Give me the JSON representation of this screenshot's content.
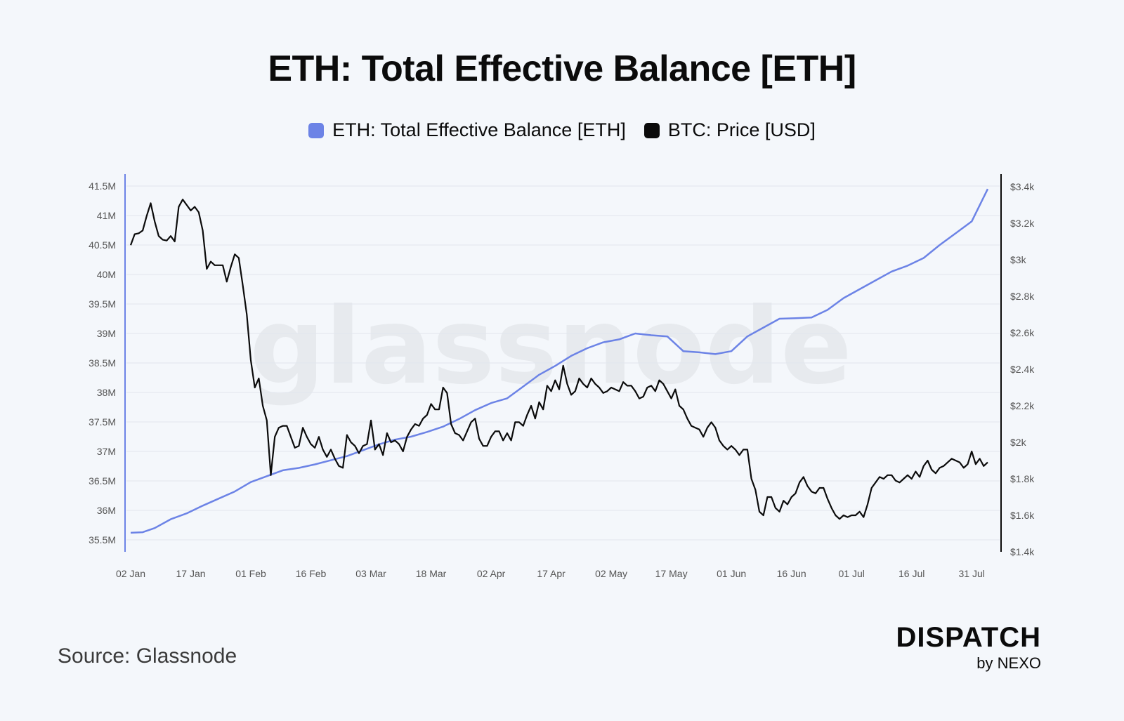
{
  "title": "ETH: Total Effective Balance [ETH]",
  "legend": [
    {
      "label": "ETH: Total Effective Balance [ETH]",
      "color": "#6c83e6"
    },
    {
      "label": "BTC: Price [USD]",
      "color": "#0b0b0b"
    }
  ],
  "watermark": "glassnode",
  "source": "Source: Glassnode",
  "brand": {
    "name": "DISPATCH",
    "sub": "by NEXO"
  },
  "chart_data": {
    "type": "line",
    "x_ticks": [
      "02 Jan",
      "17 Jan",
      "01 Feb",
      "16 Feb",
      "03 Mar",
      "18 Mar",
      "02 Apr",
      "17 Apr",
      "02 May",
      "17 May",
      "01 Jun",
      "16 Jun",
      "01 Jul",
      "16 Jul",
      "31 Jul"
    ],
    "x_range_days": [
      0,
      214
    ],
    "y_left": {
      "ticks": [
        "41.5M",
        "41M",
        "40.5M",
        "40M",
        "39.5M",
        "39M",
        "38.5M",
        "38M",
        "37.5M",
        "37M",
        "36.5M",
        "36M",
        "35.5M"
      ],
      "range": [
        35.3,
        41.7
      ]
    },
    "y_right": {
      "ticks": [
        "$3.4k",
        "$3.2k",
        "$3k",
        "$2.8k",
        "$2.6k",
        "$2.4k",
        "$2.2k",
        "$2k",
        "$1.8k",
        "$1.6k",
        "$1.4k"
      ],
      "range": [
        1400,
        3400
      ]
    },
    "grid": true,
    "series": [
      {
        "name": "ETH: Total Effective Balance [ETH]",
        "axis": "left",
        "color": "#6c83e6",
        "points": [
          [
            0,
            35.62
          ],
          [
            3,
            35.63
          ],
          [
            6,
            35.7
          ],
          [
            10,
            35.85
          ],
          [
            14,
            35.95
          ],
          [
            18,
            36.08
          ],
          [
            22,
            36.2
          ],
          [
            26,
            36.32
          ],
          [
            30,
            36.48
          ],
          [
            34,
            36.58
          ],
          [
            38,
            36.68
          ],
          [
            42,
            36.72
          ],
          [
            46,
            36.78
          ],
          [
            50,
            36.85
          ],
          [
            54,
            36.92
          ],
          [
            58,
            37.02
          ],
          [
            62,
            37.12
          ],
          [
            66,
            37.2
          ],
          [
            70,
            37.25
          ],
          [
            74,
            37.33
          ],
          [
            78,
            37.42
          ],
          [
            82,
            37.55
          ],
          [
            86,
            37.7
          ],
          [
            90,
            37.82
          ],
          [
            94,
            37.9
          ],
          [
            98,
            38.1
          ],
          [
            102,
            38.3
          ],
          [
            106,
            38.45
          ],
          [
            110,
            38.62
          ],
          [
            114,
            38.75
          ],
          [
            118,
            38.85
          ],
          [
            122,
            38.9
          ],
          [
            126,
            39.0
          ],
          [
            130,
            38.97
          ],
          [
            134,
            38.95
          ],
          [
            138,
            38.7
          ],
          [
            142,
            38.68
          ],
          [
            146,
            38.65
          ],
          [
            150,
            38.7
          ],
          [
            154,
            38.95
          ],
          [
            158,
            39.1
          ],
          [
            162,
            39.25
          ],
          [
            166,
            39.26
          ],
          [
            170,
            39.27
          ],
          [
            174,
            39.4
          ],
          [
            178,
            39.6
          ],
          [
            182,
            39.75
          ],
          [
            186,
            39.9
          ],
          [
            190,
            40.05
          ],
          [
            194,
            40.15
          ],
          [
            198,
            40.28
          ],
          [
            202,
            40.5
          ],
          [
            206,
            40.7
          ],
          [
            210,
            40.9
          ],
          [
            214,
            41.45
          ]
        ]
      },
      {
        "name": "BTC: Price [USD]",
        "axis": "right",
        "color": "#0b0b0b",
        "points": [
          [
            0,
            3080
          ],
          [
            1,
            3140
          ],
          [
            2,
            3145
          ],
          [
            3,
            3160
          ],
          [
            4,
            3240
          ],
          [
            5,
            3310
          ],
          [
            6,
            3210
          ],
          [
            7,
            3130
          ],
          [
            8,
            3110
          ],
          [
            9,
            3105
          ],
          [
            10,
            3130
          ],
          [
            11,
            3100
          ],
          [
            12,
            3290
          ],
          [
            13,
            3330
          ],
          [
            14,
            3300
          ],
          [
            15,
            3270
          ],
          [
            16,
            3290
          ],
          [
            17,
            3260
          ],
          [
            18,
            3160
          ],
          [
            19,
            2950
          ],
          [
            20,
            2990
          ],
          [
            21,
            2970
          ],
          [
            22,
            2970
          ],
          [
            23,
            2970
          ],
          [
            24,
            2880
          ],
          [
            25,
            2960
          ],
          [
            26,
            3030
          ],
          [
            27,
            3010
          ],
          [
            28,
            2860
          ],
          [
            29,
            2700
          ],
          [
            30,
            2450
          ],
          [
            31,
            2300
          ],
          [
            32,
            2350
          ],
          [
            33,
            2200
          ],
          [
            34,
            2120
          ],
          [
            35,
            1820
          ],
          [
            36,
            2030
          ],
          [
            37,
            2080
          ],
          [
            38,
            2090
          ],
          [
            39,
            2090
          ],
          [
            40,
            2030
          ],
          [
            41,
            1970
          ],
          [
            42,
            1980
          ],
          [
            43,
            2080
          ],
          [
            44,
            2030
          ],
          [
            45,
            1990
          ],
          [
            46,
            1970
          ],
          [
            47,
            2030
          ],
          [
            48,
            1960
          ],
          [
            49,
            1920
          ],
          [
            50,
            1960
          ],
          [
            51,
            1910
          ],
          [
            52,
            1870
          ],
          [
            53,
            1860
          ],
          [
            54,
            2040
          ],
          [
            55,
            2000
          ],
          [
            56,
            1980
          ],
          [
            57,
            1940
          ],
          [
            58,
            1980
          ],
          [
            59,
            1990
          ],
          [
            60,
            2120
          ],
          [
            61,
            1960
          ],
          [
            62,
            1990
          ],
          [
            63,
            1930
          ],
          [
            64,
            2050
          ],
          [
            65,
            2000
          ],
          [
            66,
            2010
          ],
          [
            67,
            1990
          ],
          [
            68,
            1950
          ],
          [
            69,
            2030
          ],
          [
            70,
            2070
          ],
          [
            71,
            2100
          ],
          [
            72,
            2090
          ],
          [
            73,
            2130
          ],
          [
            74,
            2150
          ],
          [
            75,
            2210
          ],
          [
            76,
            2180
          ],
          [
            77,
            2180
          ],
          [
            78,
            2300
          ],
          [
            79,
            2270
          ],
          [
            80,
            2100
          ],
          [
            81,
            2050
          ],
          [
            82,
            2040
          ],
          [
            83,
            2010
          ],
          [
            84,
            2060
          ],
          [
            85,
            2110
          ],
          [
            86,
            2130
          ],
          [
            87,
            2020
          ],
          [
            88,
            1980
          ],
          [
            89,
            1980
          ],
          [
            90,
            2030
          ],
          [
            91,
            2060
          ],
          [
            92,
            2060
          ],
          [
            93,
            2010
          ],
          [
            94,
            2050
          ],
          [
            95,
            2010
          ],
          [
            96,
            2110
          ],
          [
            97,
            2110
          ],
          [
            98,
            2090
          ],
          [
            99,
            2150
          ],
          [
            100,
            2200
          ],
          [
            101,
            2130
          ],
          [
            102,
            2220
          ],
          [
            103,
            2180
          ],
          [
            104,
            2310
          ],
          [
            105,
            2280
          ],
          [
            106,
            2340
          ],
          [
            107,
            2290
          ],
          [
            108,
            2420
          ],
          [
            109,
            2320
          ],
          [
            110,
            2260
          ],
          [
            111,
            2280
          ],
          [
            112,
            2350
          ],
          [
            113,
            2320
          ],
          [
            114,
            2300
          ],
          [
            115,
            2350
          ],
          [
            116,
            2320
          ],
          [
            117,
            2300
          ],
          [
            118,
            2270
          ],
          [
            119,
            2280
          ],
          [
            120,
            2300
          ],
          [
            121,
            2290
          ],
          [
            122,
            2280
          ],
          [
            123,
            2330
          ],
          [
            124,
            2310
          ],
          [
            125,
            2310
          ],
          [
            126,
            2280
          ],
          [
            127,
            2240
          ],
          [
            128,
            2250
          ],
          [
            129,
            2300
          ],
          [
            130,
            2310
          ],
          [
            131,
            2280
          ],
          [
            132,
            2340
          ],
          [
            133,
            2320
          ],
          [
            134,
            2280
          ],
          [
            135,
            2240
          ],
          [
            136,
            2290
          ],
          [
            137,
            2200
          ],
          [
            138,
            2180
          ],
          [
            139,
            2130
          ],
          [
            140,
            2090
          ],
          [
            141,
            2080
          ],
          [
            142,
            2070
          ],
          [
            143,
            2030
          ],
          [
            144,
            2080
          ],
          [
            145,
            2110
          ],
          [
            146,
            2080
          ],
          [
            147,
            2010
          ],
          [
            148,
            1980
          ],
          [
            149,
            1960
          ],
          [
            150,
            1980
          ],
          [
            151,
            1960
          ],
          [
            152,
            1930
          ],
          [
            153,
            1960
          ],
          [
            154,
            1960
          ],
          [
            155,
            1800
          ],
          [
            156,
            1740
          ],
          [
            157,
            1620
          ],
          [
            158,
            1600
          ],
          [
            159,
            1700
          ],
          [
            160,
            1700
          ],
          [
            161,
            1640
          ],
          [
            162,
            1620
          ],
          [
            163,
            1680
          ],
          [
            164,
            1660
          ],
          [
            165,
            1700
          ],
          [
            166,
            1720
          ],
          [
            167,
            1780
          ],
          [
            168,
            1810
          ],
          [
            169,
            1760
          ],
          [
            170,
            1730
          ],
          [
            171,
            1720
          ],
          [
            172,
            1750
          ],
          [
            173,
            1750
          ],
          [
            174,
            1690
          ],
          [
            175,
            1640
          ],
          [
            176,
            1600
          ],
          [
            177,
            1580
          ],
          [
            178,
            1600
          ],
          [
            179,
            1590
          ],
          [
            180,
            1600
          ],
          [
            181,
            1600
          ],
          [
            182,
            1620
          ],
          [
            183,
            1590
          ],
          [
            184,
            1660
          ],
          [
            185,
            1750
          ],
          [
            186,
            1780
          ],
          [
            187,
            1810
          ],
          [
            188,
            1800
          ],
          [
            189,
            1820
          ],
          [
            190,
            1820
          ],
          [
            191,
            1790
          ],
          [
            192,
            1780
          ],
          [
            193,
            1800
          ],
          [
            194,
            1820
          ],
          [
            195,
            1800
          ],
          [
            196,
            1840
          ],
          [
            197,
            1810
          ],
          [
            198,
            1870
          ],
          [
            199,
            1900
          ],
          [
            200,
            1850
          ],
          [
            201,
            1830
          ],
          [
            202,
            1860
          ],
          [
            203,
            1870
          ],
          [
            204,
            1890
          ],
          [
            205,
            1910
          ],
          [
            206,
            1900
          ],
          [
            207,
            1890
          ],
          [
            208,
            1860
          ],
          [
            209,
            1880
          ],
          [
            210,
            1950
          ],
          [
            211,
            1880
          ],
          [
            212,
            1910
          ],
          [
            213,
            1870
          ],
          [
            214,
            1890
          ]
        ]
      }
    ]
  }
}
